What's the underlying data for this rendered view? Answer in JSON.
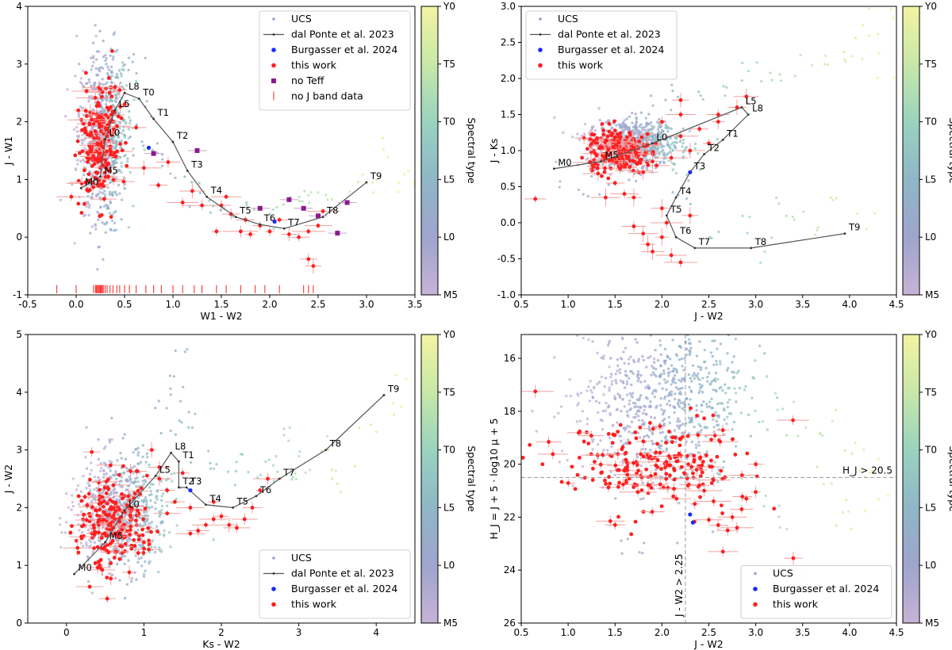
{
  "colorbar": {
    "label": "Spectral type",
    "ticks": [
      "M5",
      "L0",
      "L5",
      "T0",
      "T5",
      "Y0"
    ],
    "colors": [
      "#c7b2d6",
      "#9fa5cd",
      "#8fb6c7",
      "#99d3bf",
      "#c8e8a8",
      "#f4f3a3"
    ]
  },
  "colors": {
    "ucs": "#8f93c4",
    "this_work": "#ff1f1f",
    "burgasser": "#1a28ff",
    "no_teff": "#8b1c8f",
    "seq": "#555555"
  },
  "chart_data": [
    {
      "id": "p1",
      "type": "scatter",
      "xlabel": "W1 - W2",
      "ylabel": "J - W1",
      "xlim": [
        -0.5,
        3.5
      ],
      "ylim": [
        -1,
        4
      ],
      "xticks": [
        "-0.5",
        "0.0",
        "0.5",
        "1.0",
        "1.5",
        "2.0",
        "2.5",
        "3.0",
        "3.5"
      ],
      "yticks": [
        "-1",
        "0",
        "1",
        "2",
        "3",
        "4"
      ],
      "legend": [
        "UCS",
        "dal Ponte et al. 2023",
        "Burgasser et al. 2024",
        "this work",
        "no Teff",
        "no J band data"
      ],
      "legend_loc": "top-right",
      "sequence": {
        "labels": [
          "M0",
          "M5",
          "L0",
          "L5",
          "L8",
          "T0",
          "T1",
          "T2",
          "T3",
          "T4",
          "T5",
          "T6",
          "T7",
          "T8",
          "T9"
        ],
        "x": [
          0.05,
          0.25,
          0.3,
          0.4,
          0.5,
          0.65,
          0.8,
          1.0,
          1.15,
          1.35,
          1.65,
          1.9,
          2.15,
          2.55,
          3.0
        ],
        "y": [
          0.85,
          1.05,
          1.7,
          2.2,
          2.5,
          2.4,
          2.05,
          1.65,
          1.15,
          0.7,
          0.35,
          0.22,
          0.15,
          0.35,
          0.95
        ]
      },
      "burgasser": {
        "x": [
          0.75,
          2.05
        ],
        "y": [
          1.55,
          0.27
        ]
      },
      "no_teff": {
        "x": [
          0.8,
          1.25,
          1.9,
          2.2,
          2.35,
          2.5,
          2.7,
          2.8
        ],
        "y": [
          1.45,
          1.5,
          0.5,
          0.65,
          0.5,
          0.37,
          0.07,
          0.6
        ]
      },
      "no_j_x": [
        -0.2,
        0.0,
        0.18,
        0.2,
        0.21,
        0.22,
        0.23,
        0.24,
        0.25,
        0.26,
        0.27,
        0.28,
        0.3,
        0.32,
        0.35,
        0.38,
        0.42,
        0.45,
        0.5,
        0.55,
        0.62,
        0.72,
        0.8,
        0.88,
        1.0,
        1.1,
        1.22,
        1.3,
        1.45,
        1.55,
        1.7,
        1.85,
        1.95,
        2.1,
        2.35,
        2.4,
        2.45
      ],
      "ucs_core": [
        0.28,
        1.8,
        0.13,
        0.75
      ],
      "red_core": [
        0.25,
        1.6,
        0.1,
        0.5
      ],
      "red_tail": {
        "x": [
          0.5,
          0.62,
          0.7,
          0.85,
          0.95,
          1.1,
          1.2,
          1.3,
          1.45,
          1.5,
          1.55,
          1.6,
          1.7,
          1.75,
          1.8,
          1.9,
          2.0,
          2.1,
          2.2,
          2.3,
          2.4,
          2.5,
          2.55,
          2.4,
          2.45,
          -0.05,
          0.1,
          0.35,
          0.4,
          0.45
        ],
        "y": [
          2.3,
          1.9,
          1.2,
          0.9,
          1.3,
          0.6,
          0.8,
          0.55,
          0.1,
          0.55,
          0.7,
          0.4,
          0.1,
          0.3,
          0.05,
          0.2,
          0.1,
          0.3,
          0.05,
          0.0,
          0.1,
          0.2,
          0.45,
          -0.38,
          -0.5,
          0.7,
          0.95,
          2.0,
          2.6,
          2.55
        ]
      },
      "ucs_tail": {
        "x": [
          0.6,
          0.7,
          0.8,
          0.9,
          1.0,
          1.2,
          1.4,
          1.5,
          1.6,
          1.8,
          2.0,
          2.1,
          2.2,
          2.3,
          2.5,
          2.6,
          2.9,
          3.1,
          3.2,
          3.3,
          3.4,
          0.55,
          0.65,
          0.75
        ],
        "y": [
          1.9,
          1.7,
          1.5,
          1.3,
          1.1,
          0.9,
          0.7,
          0.5,
          0.4,
          0.45,
          0.35,
          0.55,
          0.7,
          0.6,
          0.7,
          0.95,
          1.0,
          0.9,
          1.5,
          1.1,
          0.8,
          2.8,
          3.2,
          2.2
        ]
      }
    },
    {
      "id": "p2",
      "type": "scatter",
      "xlabel": "J - W2",
      "ylabel": "J - Ks",
      "xlim": [
        0.5,
        4.5
      ],
      "ylim": [
        -1,
        3
      ],
      "xticks": [
        "0.5",
        "1.0",
        "1.5",
        "2.0",
        "2.5",
        "3.0",
        "3.5",
        "4.0",
        "4.5"
      ],
      "yticks": [
        "-1.0",
        "-0.5",
        "0.0",
        "0.5",
        "1.0",
        "1.5",
        "2.0",
        "2.5",
        "3.0"
      ],
      "legend": [
        "UCS",
        "dal Ponte et al. 2023",
        "Burgasser et al. 2024",
        "this work"
      ],
      "legend_loc": "top-left",
      "sequence": {
        "labels": [
          "M0",
          "M5",
          "L0",
          "L5",
          "L8",
          "T1",
          "T2",
          "T3",
          "T4",
          "T5",
          "T6",
          "T7",
          "T8",
          "T9"
        ],
        "x": [
          0.85,
          1.35,
          1.9,
          2.85,
          2.92,
          2.65,
          2.45,
          2.3,
          2.15,
          2.05,
          2.15,
          2.35,
          2.95,
          3.95
        ],
        "y": [
          0.75,
          0.85,
          1.1,
          1.6,
          1.5,
          1.15,
          0.95,
          0.7,
          0.35,
          0.1,
          -0.2,
          -0.35,
          -0.35,
          -0.15
        ]
      },
      "burgasser": {
        "x": [
          2.3
        ],
        "y": [
          0.7
        ]
      },
      "ucs_core": [
        1.7,
        1.1,
        0.25,
        0.17
      ],
      "red_core": [
        1.55,
        1.0,
        0.17,
        0.15
      ],
      "red_tail": {
        "x": [
          2.0,
          2.2,
          2.4,
          2.6,
          2.8,
          2.5,
          2.3,
          2.2,
          2.1,
          1.9,
          1.8,
          1.6,
          1.7,
          1.5,
          1.4,
          1.7,
          1.8,
          1.85,
          1.9,
          2.0,
          2.05,
          2.1,
          2.2,
          2.3,
          2.0,
          0.65,
          2.2,
          2.6,
          2.9
        ],
        "y": [
          1.4,
          1.5,
          1.3,
          1.4,
          1.6,
          1.1,
          1.0,
          1.2,
          0.9,
          0.85,
          0.7,
          0.4,
          0.35,
          0.55,
          0.35,
          -0.05,
          -0.15,
          -0.3,
          -0.4,
          -0.2,
          0.0,
          -0.45,
          -0.55,
          0.1,
          0.2,
          0.33,
          1.7,
          1.5,
          1.75
        ]
      },
      "ucs_tail": {
        "x": [
          2.5,
          2.7,
          2.9,
          3.1,
          3.3,
          3.5,
          3.7,
          3.9,
          4.1,
          4.3,
          2.2,
          2.3,
          3.4,
          3.6,
          3.8,
          4.2,
          1.0,
          1.2,
          1.3,
          2.0,
          2.1,
          2.6,
          2.8,
          3.0,
          3.2,
          4.4,
          4.35
        ],
        "y": [
          1.85,
          1.9,
          2.0,
          2.1,
          2.15,
          2.2,
          2.25,
          2.35,
          2.4,
          2.6,
          0.4,
          0.2,
          0.1,
          -0.1,
          0.3,
          0.0,
          0.55,
          0.45,
          0.6,
          1.75,
          1.9,
          -0.2,
          -0.05,
          -0.25,
          0.2,
          2.9,
          2.1
        ]
      }
    },
    {
      "id": "p3",
      "type": "scatter",
      "xlabel": "Ks - W2",
      "ylabel": "J - W2",
      "xlim": [
        -0.5,
        4.5
      ],
      "ylim": [
        0,
        5
      ],
      "xticks": [
        "0",
        "1",
        "2",
        "3",
        "4"
      ],
      "yticks": [
        "0",
        "1",
        "2",
        "3",
        "4",
        "5"
      ],
      "legend": [
        "UCS",
        "dal Ponte et al. 2023",
        "Burgasser et al. 2024",
        "this work"
      ],
      "legend_loc": "bottom-right",
      "sequence": {
        "labels": [
          "M0",
          "M5",
          "L0",
          "L5",
          "L8",
          "T1",
          "T2",
          "T3",
          "T4",
          "T5",
          "T6",
          "T7",
          "T8",
          "T9"
        ],
        "x": [
          0.1,
          0.5,
          0.75,
          1.15,
          1.35,
          1.45,
          1.45,
          1.55,
          1.8,
          2.15,
          2.45,
          2.75,
          3.35,
          4.1
        ],
        "y": [
          0.85,
          1.4,
          1.95,
          2.55,
          2.95,
          2.8,
          2.35,
          2.35,
          2.05,
          2.0,
          2.2,
          2.5,
          3.0,
          3.95
        ]
      },
      "burgasser": {
        "x": [
          1.6
        ],
        "y": [
          2.3
        ]
      },
      "ucs_core": [
        0.7,
        1.9,
        0.28,
        0.5
      ],
      "red_core": [
        0.6,
        1.75,
        0.22,
        0.4
      ],
      "red_tail": {
        "x": [
          1.2,
          1.3,
          1.4,
          1.5,
          1.6,
          1.7,
          1.8,
          1.9,
          2.0,
          2.1,
          2.2,
          2.3,
          2.4,
          2.5,
          2.6,
          1.6,
          1.7,
          1.9,
          1.2,
          1.0,
          1.1,
          0.8,
          0.3,
          1.3
        ],
        "y": [
          2.5,
          2.3,
          2.1,
          2.6,
          2.0,
          1.6,
          1.7,
          1.8,
          1.85,
          1.7,
          1.65,
          1.8,
          2.0,
          2.3,
          2.5,
          1.55,
          1.6,
          2.1,
          2.7,
          1.4,
          3.0,
          2.2,
          0.63,
          1.9
        ]
      },
      "ucs_tail": {
        "x": [
          1.3,
          1.5,
          1.7,
          1.9,
          2.1,
          2.3,
          2.5,
          2.7,
          2.9,
          3.1,
          3.3,
          3.5,
          3.9,
          4.3,
          1.4,
          1.6,
          1.2,
          2.6,
          2.8,
          3.0,
          3.6,
          4.4,
          1.55,
          1.45
        ],
        "y": [
          3.3,
          3.5,
          2.9,
          2.7,
          2.5,
          2.8,
          2.6,
          2.7,
          2.5,
          2.6,
          3.0,
          2.5,
          3.4,
          3.7,
          4.2,
          3.6,
          3.8,
          2.9,
          3.3,
          3.0,
          2.6,
          4.2,
          4.6,
          3.9
        ]
      }
    },
    {
      "id": "p4",
      "type": "scatter",
      "xlabel": "J - W2",
      "ylabel": "H_J = J + 5 · log10 μ + 5",
      "xlim": [
        0.5,
        4.5
      ],
      "ylim": [
        26,
        15.1
      ],
      "y_inverted": true,
      "xticks": [
        "0.5",
        "1.0",
        "1.5",
        "2.0",
        "2.5",
        "3.0",
        "3.5",
        "4.0",
        "4.5"
      ],
      "yticks": [
        "16",
        "18",
        "20",
        "22",
        "24",
        "26"
      ],
      "legend": [
        "UCS",
        "Burgasser et al. 2024",
        "this work"
      ],
      "legend_loc": "bottom-right",
      "hline": {
        "y": 20.5,
        "label": "H_J > 20.5"
      },
      "vline": {
        "x": 2.25,
        "label": "J - W2 > 2.25"
      },
      "burgasser": {
        "x": [
          2.3,
          2.33
        ],
        "y": [
          21.9,
          22.2
        ]
      },
      "ucs_core": [
        2.0,
        17.6,
        0.45,
        1.5
      ],
      "red_core": [
        1.9,
        20.0,
        0.55,
        0.8
      ],
      "red_tail": {
        "x": [
          0.65,
          1.45,
          2.5,
          2.6,
          2.7,
          2.75,
          2.8,
          2.85,
          2.9,
          3.0,
          3.4,
          2.35,
          2.45,
          2.55,
          2.4,
          2.55,
          2.65
        ],
        "y": [
          17.25,
          22.15,
          22.1,
          22.3,
          22.5,
          22.0,
          22.4,
          21.7,
          21.3,
          20.0,
          23.55,
          21.5,
          21.0,
          21.4,
          20.8,
          20.6,
          23.3
        ]
      },
      "ucs_tail": {
        "x": [
          2.8,
          3.0,
          3.2,
          3.4,
          3.6,
          3.8,
          4.0,
          4.2,
          4.4,
          3.1,
          3.3,
          3.7,
          3.9,
          4.1,
          4.3,
          3.5,
          1.6,
          1.8
        ],
        "y": [
          17.5,
          18.0,
          17.8,
          18.5,
          19.0,
          18.2,
          19.5,
          20.0,
          21.0,
          21.5,
          22.3,
          20.6,
          21.8,
          22.0,
          20.2,
          24.5,
          23.0,
          23.2
        ]
      }
    }
  ]
}
